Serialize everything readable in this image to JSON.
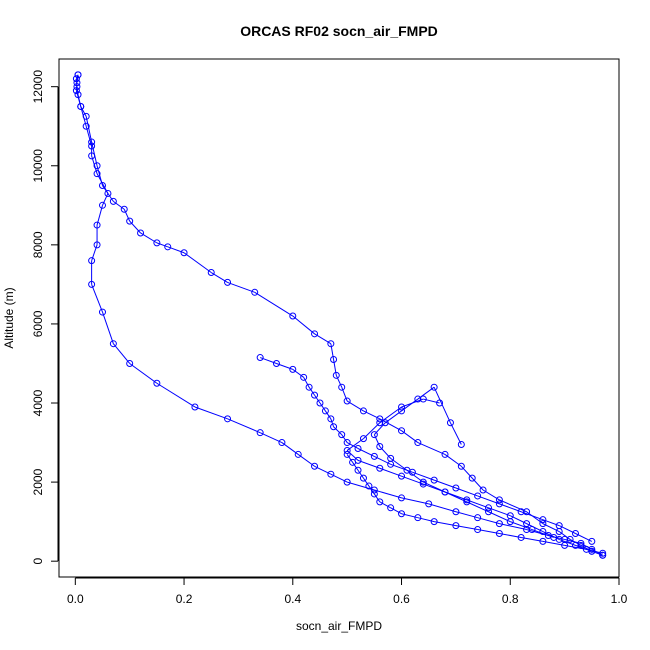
{
  "chart_data": {
    "type": "line",
    "title": "ORCAS RF02 socn_air_FMPD",
    "xlabel": "socn_air_FMPD",
    "ylabel": "Altitude (m)",
    "xlim": [
      -0.03,
      1.0
    ],
    "ylim": [
      -400,
      12700
    ],
    "xticks": [
      0.0,
      0.2,
      0.4,
      0.6,
      0.8,
      1.0
    ],
    "xtick_labels": [
      "0.0",
      "0.2",
      "0.4",
      "0.6",
      "0.8",
      "1.0"
    ],
    "yticks": [
      0,
      2000,
      4000,
      6000,
      8000,
      10000,
      12000
    ],
    "ytick_labels": [
      "0",
      "2000",
      "4000",
      "6000",
      "8000",
      "10000",
      "12000"
    ],
    "grid": false,
    "marker": "open-circle",
    "color": "#0000ff",
    "series": [
      {
        "x": [
          0.97,
          0.95,
          0.93,
          0.9,
          0.87,
          0.83,
          0.78,
          0.74,
          0.7,
          0.65,
          0.6,
          0.55,
          0.5,
          0.47,
          0.44,
          0.41,
          0.38,
          0.34,
          0.28,
          0.22,
          0.15,
          0.1,
          0.07,
          0.05,
          0.03,
          0.03,
          0.04,
          0.04,
          0.05,
          0.06,
          0.04,
          0.03,
          0.03,
          0.02,
          0.01,
          0.005,
          0.003,
          0.002,
          0.005
        ],
        "y": [
          150,
          300,
          450,
          550,
          650,
          800,
          950,
          1100,
          1250,
          1450,
          1600,
          1800,
          2000,
          2200,
          2400,
          2700,
          3000,
          3250,
          3600,
          3900,
          4500,
          5000,
          5500,
          6300,
          7000,
          7600,
          8000,
          8500,
          9000,
          9300,
          9800,
          10250,
          10500,
          11000,
          11500,
          11800,
          12000,
          12200,
          12300
        ]
      },
      {
        "x": [
          0.005,
          0.003,
          0.002,
          0.01,
          0.02,
          0.03,
          0.04,
          0.05,
          0.07,
          0.09,
          0.1,
          0.12,
          0.15,
          0.17,
          0.2,
          0.25,
          0.28,
          0.33,
          0.4,
          0.44,
          0.47,
          0.475,
          0.48,
          0.49,
          0.5,
          0.53,
          0.56,
          0.6,
          0.63,
          0.68,
          0.71,
          0.73,
          0.75,
          0.78,
          0.83,
          0.86,
          0.89,
          0.91,
          0.93,
          0.95,
          0.97
        ],
        "y": [
          12300,
          12100,
          11900,
          11500,
          11250,
          10600,
          10000,
          9500,
          9100,
          8900,
          8600,
          8300,
          8050,
          7950,
          7800,
          7300,
          7050,
          6800,
          6200,
          5750,
          5500,
          5100,
          4700,
          4400,
          4050,
          3800,
          3600,
          3300,
          3000,
          2700,
          2400,
          2100,
          1800,
          1550,
          1250,
          950,
          750,
          550,
          400,
          250,
          150
        ]
      },
      {
        "x": [
          0.95,
          0.92,
          0.89,
          0.86,
          0.82,
          0.78,
          0.74,
          0.7,
          0.66,
          0.62,
          0.58,
          0.55,
          0.52,
          0.5,
          0.49,
          0.475,
          0.47,
          0.46,
          0.45,
          0.44,
          0.43,
          0.42,
          0.4,
          0.37,
          0.34
        ],
        "y": [
          500,
          700,
          900,
          1050,
          1250,
          1450,
          1650,
          1850,
          2050,
          2250,
          2450,
          2650,
          2850,
          3000,
          3200,
          3400,
          3600,
          3800,
          4000,
          4200,
          4400,
          4650,
          4850,
          5000,
          5150
        ]
      },
      {
        "x": [
          0.88,
          0.84,
          0.8,
          0.76,
          0.72,
          0.68,
          0.64,
          0.61,
          0.58,
          0.56,
          0.55,
          0.57,
          0.6,
          0.63,
          0.66,
          0.69,
          0.71
        ],
        "y": [
          600,
          800,
          1000,
          1250,
          1500,
          1750,
          2000,
          2300,
          2600,
          2900,
          3200,
          3500,
          3800,
          4100,
          4400,
          3500,
          2950
        ]
      },
      {
        "x": [
          0.95,
          0.92,
          0.89,
          0.86,
          0.83,
          0.8,
          0.76,
          0.72,
          0.68,
          0.64,
          0.6,
          0.56,
          0.52,
          0.5,
          0.53,
          0.56,
          0.6,
          0.64,
          0.67
        ],
        "y": [
          250,
          400,
          550,
          750,
          950,
          1150,
          1350,
          1550,
          1750,
          1950,
          2150,
          2350,
          2550,
          2800,
          3100,
          3500,
          3900,
          4100,
          4000
        ]
      },
      {
        "x": [
          0.97,
          0.94,
          0.9,
          0.86,
          0.82,
          0.78,
          0.74,
          0.7,
          0.66,
          0.63,
          0.6,
          0.58,
          0.56,
          0.55,
          0.54,
          0.53,
          0.52,
          0.51,
          0.5
        ],
        "y": [
          200,
          300,
          400,
          500,
          600,
          700,
          800,
          900,
          1000,
          1100,
          1200,
          1350,
          1500,
          1700,
          1900,
          2100,
          2300,
          2500,
          2700
        ]
      }
    ]
  }
}
